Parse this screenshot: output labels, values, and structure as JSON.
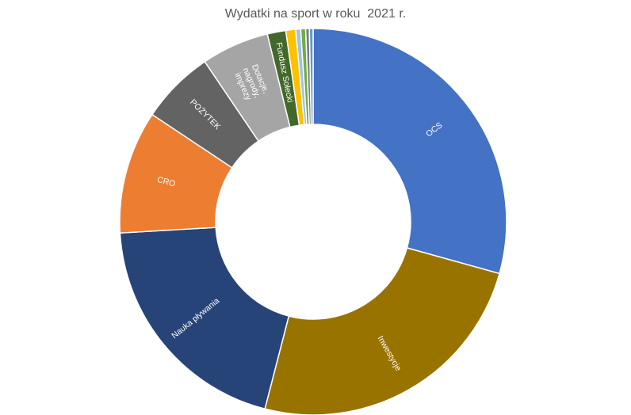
{
  "colors": {
    "label_text": "#ffffff",
    "title_text": "#595959",
    "slice_border": "#ffffff"
  },
  "chart_data": {
    "type": "pie",
    "variant": "donut",
    "title": "Wydatki na sport w roku  2021 r.",
    "legend": "none",
    "slices": [
      {
        "label": "OCS",
        "value": 28.5,
        "color": "#4472c4"
      },
      {
        "label": "Inwestycje",
        "value": 24.0,
        "color": "#997300"
      },
      {
        "label": "Nauka pływania",
        "value": 19.5,
        "color": "#264478"
      },
      {
        "label": "CRO",
        "value": 10.0,
        "color": "#ed7d31"
      },
      {
        "label": "POŻYTEK",
        "value": 6.0,
        "color": "#636363"
      },
      {
        "label": "Dotacje, nagrody, imprezy",
        "value": 5.5,
        "color": "#a5a5a5"
      },
      {
        "label": "Fundusz Sołecki",
        "value": 1.5,
        "color": "#43682b"
      },
      {
        "label": "",
        "value": 0.8,
        "color": "#ffc000"
      },
      {
        "label": "",
        "value": 0.4,
        "color": "#9dc3e6"
      },
      {
        "label": "",
        "value": 0.4,
        "color": "#70ad47"
      },
      {
        "label": "",
        "value": 0.3,
        "color": "#7f7f7f"
      },
      {
        "label": "",
        "value": 0.3,
        "color": "#5b9bd5"
      }
    ]
  }
}
